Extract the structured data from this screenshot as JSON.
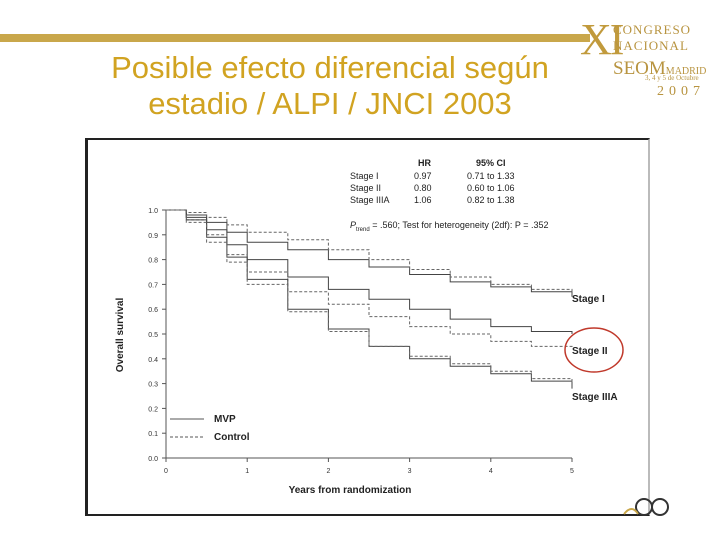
{
  "title": {
    "line1": "Posible efecto diferencial según",
    "line2": "estadio / ALPI / JNCI 2003"
  },
  "logo": {
    "numeral": "XI",
    "line1": "CONGRESO",
    "line2": "NACIONAL",
    "line3": "SEOM",
    "line3b": "MADRID",
    "line4": "3, 4 y 5 de Octubre",
    "line5": "2007"
  },
  "colors": {
    "title": "#d1a321",
    "accent": "#c9a74b",
    "highlight": "#c0392b"
  },
  "chart_data": {
    "type": "line",
    "title": "",
    "xlabel": "Years from randomization",
    "ylabel": "Overall survival",
    "xlim": [
      0,
      5
    ],
    "ylim": [
      0,
      1
    ],
    "xticks": [
      "0",
      "1",
      "2",
      "3",
      "4",
      "5"
    ],
    "yticks": [
      "0.0",
      "0.1",
      "0.2",
      "0.3",
      "0.4",
      "0.5",
      "0.6",
      "0.7",
      "0.8",
      "0.9",
      "1.0"
    ],
    "legend": [
      {
        "label": "MVP",
        "style": "solid"
      },
      {
        "label": "Control",
        "style": "dashed"
      }
    ],
    "table": {
      "headers": [
        "",
        "HR",
        "95% CI"
      ],
      "rows": [
        [
          "Stage I",
          "0.97",
          "0.71 to 1.33"
        ],
        [
          "Stage II",
          "0.80",
          "0.60 to 1.06"
        ],
        [
          "Stage IIIA",
          "1.06",
          "0.82 to 1.38"
        ]
      ],
      "footnote_p": "P",
      "footnote_sub": "trend",
      "footnote_rest": " = .560;   Test for heterogeneity (2df):  P = .352"
    },
    "series": [
      {
        "name": "Stage I",
        "arm": "MVP",
        "dashed": false,
        "x": [
          0,
          0.25,
          0.5,
          0.75,
          1,
          1.5,
          2,
          2.5,
          3,
          3.5,
          4,
          4.5,
          5
        ],
        "y": [
          1,
          0.98,
          0.95,
          0.91,
          0.87,
          0.84,
          0.8,
          0.77,
          0.74,
          0.71,
          0.69,
          0.67,
          0.65
        ]
      },
      {
        "name": "Stage I",
        "arm": "Control",
        "dashed": true,
        "x": [
          0,
          0.25,
          0.5,
          0.75,
          1,
          1.5,
          2,
          2.5,
          3,
          3.5,
          4,
          4.5,
          5
        ],
        "y": [
          1,
          0.99,
          0.97,
          0.94,
          0.91,
          0.88,
          0.84,
          0.8,
          0.76,
          0.73,
          0.7,
          0.68,
          0.67
        ]
      },
      {
        "name": "Stage II",
        "arm": "MVP",
        "dashed": false,
        "x": [
          0,
          0.25,
          0.5,
          0.75,
          1,
          1.5,
          2,
          2.5,
          3,
          3.5,
          4,
          4.5,
          5
        ],
        "y": [
          1,
          0.97,
          0.92,
          0.86,
          0.8,
          0.73,
          0.68,
          0.64,
          0.6,
          0.56,
          0.53,
          0.51,
          0.5
        ]
      },
      {
        "name": "Stage II",
        "arm": "Control",
        "dashed": true,
        "x": [
          0,
          0.25,
          0.5,
          0.75,
          1,
          1.5,
          2,
          2.5,
          3,
          3.5,
          4,
          4.5,
          5
        ],
        "y": [
          1,
          0.96,
          0.9,
          0.82,
          0.75,
          0.67,
          0.62,
          0.57,
          0.53,
          0.5,
          0.47,
          0.45,
          0.44
        ]
      },
      {
        "name": "Stage IIIA",
        "arm": "MVP",
        "dashed": false,
        "x": [
          0,
          0.25,
          0.5,
          0.75,
          1,
          1.5,
          2,
          2.5,
          3,
          3.5,
          4,
          4.5,
          5
        ],
        "y": [
          1,
          0.96,
          0.89,
          0.81,
          0.72,
          0.6,
          0.52,
          0.45,
          0.4,
          0.37,
          0.34,
          0.31,
          0.28
        ]
      },
      {
        "name": "Stage IIIA",
        "arm": "Control",
        "dashed": true,
        "x": [
          0,
          0.25,
          0.5,
          0.75,
          1,
          1.5,
          2,
          2.5,
          3,
          3.5,
          4,
          4.5,
          5
        ],
        "y": [
          1,
          0.95,
          0.87,
          0.79,
          0.7,
          0.59,
          0.51,
          0.45,
          0.41,
          0.38,
          0.35,
          0.32,
          0.3
        ]
      }
    ],
    "curve_labels": [
      "Stage I",
      "Stage II",
      "Stage IIIA"
    ],
    "highlighted_label": "Stage II",
    "grid": false
  }
}
